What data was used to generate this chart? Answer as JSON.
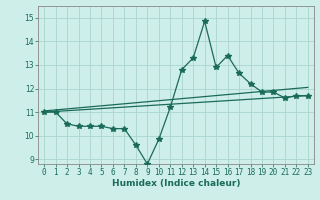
{
  "title": "",
  "xlabel": "Humidex (Indice chaleur)",
  "ylabel": "",
  "bg_color": "#ceeee9",
  "grid_color": "#aad4ce",
  "line_color": "#1a6b5a",
  "xlim": [
    -0.5,
    23.5
  ],
  "ylim": [
    8.8,
    15.5
  ],
  "yticks": [
    9,
    10,
    11,
    12,
    13,
    14,
    15
  ],
  "xticks": [
    0,
    1,
    2,
    3,
    4,
    5,
    6,
    7,
    8,
    9,
    10,
    11,
    12,
    13,
    14,
    15,
    16,
    17,
    18,
    19,
    20,
    21,
    22,
    23
  ],
  "xtick_labels": [
    "0",
    "1",
    "2",
    "3",
    "4",
    "5",
    "6",
    "7",
    "8",
    "9",
    "10",
    "11",
    "12",
    "13",
    "14",
    "15",
    "16",
    "17",
    "18",
    "19",
    "20",
    "21",
    "22",
    "23"
  ],
  "line1_x": [
    0,
    1,
    2,
    3,
    4,
    5,
    6,
    7,
    8,
    9,
    10,
    11,
    12,
    13,
    14,
    15,
    16,
    17,
    18,
    19,
    20,
    21,
    22,
    23
  ],
  "line1_y": [
    11.0,
    11.0,
    10.5,
    10.4,
    10.4,
    10.4,
    10.3,
    10.3,
    9.6,
    8.8,
    9.85,
    11.2,
    12.8,
    13.3,
    14.85,
    12.9,
    13.4,
    12.65,
    12.2,
    11.85,
    11.85,
    11.6,
    11.7,
    11.7
  ],
  "line2_x": [
    0,
    23
  ],
  "line2_y": [
    11.0,
    11.7
  ],
  "line3_x": [
    0,
    23
  ],
  "line3_y": [
    11.05,
    12.05
  ],
  "marker": "*",
  "markersize": 4,
  "linewidth": 0.9,
  "tick_fontsize": 5.5,
  "xlabel_fontsize": 6.5
}
